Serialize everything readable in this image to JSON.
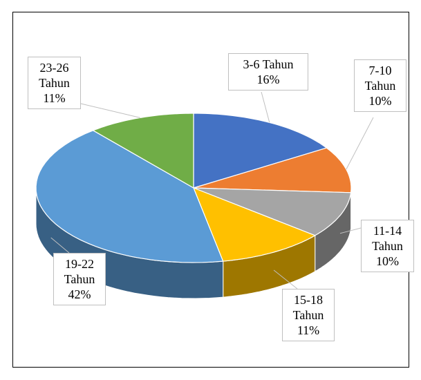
{
  "chart_data": {
    "type": "pie",
    "three_d": true,
    "categories": [
      "3-6 Tahun",
      "7-10 Tahun",
      "11-14 Tahun",
      "15-18 Tahun",
      "19-22 Tahun",
      "23-26 Tahun"
    ],
    "values": [
      16,
      10,
      10,
      11,
      42,
      11
    ],
    "value_labels": [
      "16%",
      "10%",
      "10%",
      "11%",
      "42%",
      "11%"
    ],
    "colors": [
      "#4472c4",
      "#ed7d31",
      "#a5a5a5",
      "#ffc000",
      "#5b9bd5",
      "#70ad47"
    ]
  }
}
